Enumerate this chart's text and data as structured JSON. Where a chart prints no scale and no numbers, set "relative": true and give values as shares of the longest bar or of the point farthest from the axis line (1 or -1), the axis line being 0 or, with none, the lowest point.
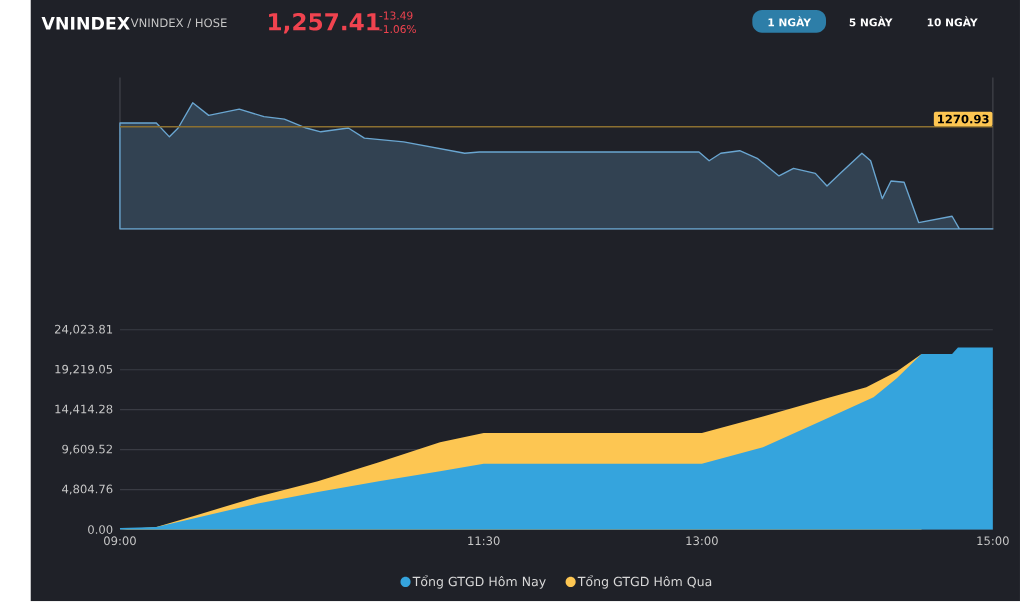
{
  "chart_data": [
    {
      "type": "area",
      "title": "VNINDEX",
      "subtitle": "VNINDEX / HOSE",
      "annotations": [
        "1,257.41",
        "-13.49",
        "-1.06%",
        "1 NGÀY",
        "5 NGÀY",
        "10 NGÀY",
        {
          "text": "1270.93",
          "x": 15,
          "y": 0.81
        }
      ],
      "relative": true,
      "x": [
        9.0,
        9.25,
        9.34,
        9.4,
        9.5,
        9.61,
        9.82,
        9.99,
        10.13,
        10.28,
        10.38,
        10.57,
        10.68,
        10.95,
        11.37,
        11.47,
        12.98,
        13.05,
        13.13,
        13.26,
        13.38,
        13.53,
        13.63,
        13.78,
        13.86,
        13.95,
        14.1,
        14.16,
        14.24,
        14.3,
        14.39,
        14.49,
        14.72,
        14.77,
        15.0
      ],
      "series": [
        {
          "color": "#6aa6d1",
          "values": [
            0.84,
            0.84,
            0.73,
            0.8,
            1.0,
            0.9,
            0.95,
            0.89,
            0.87,
            0.8,
            0.77,
            0.8,
            0.72,
            0.69,
            0.6,
            0.61,
            0.61,
            0.54,
            0.6,
            0.62,
            0.56,
            0.42,
            0.48,
            0.44,
            0.34,
            0.44,
            0.6,
            0.54,
            0.24,
            0.38,
            0.37,
            0.05,
            0.1,
            0.0,
            0.0
          ]
        }
      ],
      "ref_lines": [
        {
          "axis": "y",
          "value": 0.81,
          "color": "#8b7031"
        }
      ],
      "xlim": [
        9,
        15
      ]
    },
    {
      "type": "area",
      "series": [
        {
          "name": "Tổng GTGD Hôm Nay",
          "color": "#35a4dd",
          "x": [
            9.0,
            9.25,
            9.52,
            9.94,
            10.36,
            10.78,
            11.2,
            11.5,
            13.0,
            13.42,
            13.84,
            14.18,
            14.34,
            14.51,
            14.72,
            14.76,
            15.0
          ],
          "values": [
            200,
            300,
            1400,
            3100,
            4500,
            5800,
            7000,
            7900,
            7900,
            9900,
            13200,
            15900,
            18200,
            21100,
            21100,
            21900,
            21900
          ]
        },
        {
          "name": "Tổng GTGD Hôm Qua",
          "color": "#fdc652",
          "x": [
            9.0,
            9.25,
            9.52,
            9.94,
            10.36,
            10.78,
            11.2,
            11.5,
            13.0,
            13.42,
            13.84,
            14.13,
            14.34,
            14.51
          ],
          "values": [
            0,
            300,
            1700,
            3900,
            5800,
            8100,
            10500,
            11600,
            11600,
            13600,
            15700,
            17100,
            19000,
            21100
          ]
        }
      ],
      "xlim": [
        9,
        15
      ],
      "xticks": [
        {
          "value": 9,
          "label": "09:00"
        },
        {
          "value": 11.5,
          "label": "11:30"
        },
        {
          "value": 13,
          "label": "13:00"
        },
        {
          "value": 15,
          "label": "15:00"
        }
      ],
      "ylim": [
        0,
        24023.81
      ],
      "yticks": [
        {
          "value": 0,
          "label": "0.00"
        },
        {
          "value": 4804.76,
          "label": "4,804.76"
        },
        {
          "value": 9609.52,
          "label": "9,609.52"
        },
        {
          "value": 14414.28,
          "label": "14,414.28"
        },
        {
          "value": 19219.05,
          "label": "19,219.05"
        },
        {
          "value": 24023.81,
          "label": "24,023.81"
        }
      ],
      "grid": "y",
      "legend": "bottom"
    }
  ]
}
